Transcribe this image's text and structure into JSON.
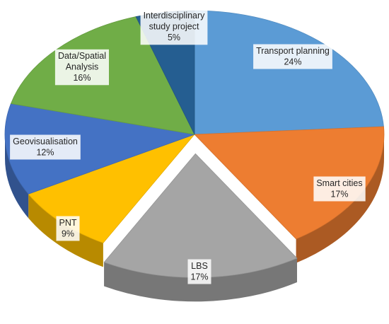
{
  "chart_data": {
    "type": "pie",
    "style": "3d-exploded",
    "title": "",
    "legend": "none",
    "slices": [
      {
        "label": "Transport planning",
        "value": 24,
        "display": "24%",
        "color": "#5B9BD5",
        "label_lines": [
          "Transport planning",
          "24%"
        ]
      },
      {
        "label": "Smart cities",
        "value": 17,
        "display": "17%",
        "color": "#ED7D31",
        "label_lines": [
          "Smart cities",
          "17%"
        ]
      },
      {
        "label": "LBS",
        "value": 17,
        "display": "17%",
        "color": "#A5A5A5",
        "label_lines": [
          "LBS",
          "17%"
        ]
      },
      {
        "label": "PNT",
        "value": 9,
        "display": "9%",
        "color": "#FFC000",
        "label_lines": [
          "PNT",
          "9%"
        ]
      },
      {
        "label": "Geovisualisation",
        "value": 12,
        "display": "12%",
        "color": "#4472C4",
        "label_lines": [
          "Geovisualisation",
          "12%"
        ]
      },
      {
        "label": "Data/Spatial Analysis",
        "value": 16,
        "display": "16%",
        "color": "#70AD47",
        "label_lines": [
          "Data/Spatial",
          "Analysis",
          "16%"
        ]
      },
      {
        "label": "Interdisciplinary study project",
        "value": 5,
        "display": "5%",
        "color": "#255E91",
        "label_lines": [
          "Interdisciplinary",
          "study project",
          "5%"
        ]
      }
    ]
  }
}
